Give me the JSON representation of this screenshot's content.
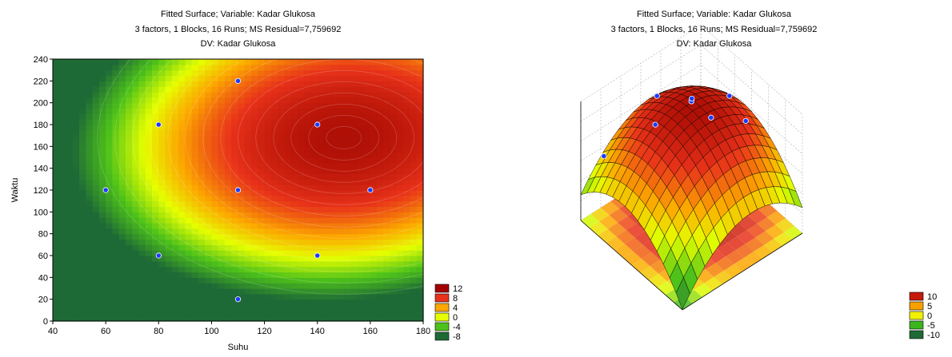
{
  "chart_data": [
    {
      "type": "contour",
      "title_lines": [
        "Fitted Surface; Variable: Kadar Glukosa",
        "3 factors, 1 Blocks, 16 Runs; MS Residual=7,759692",
        "DV: Kadar Glukosa"
      ],
      "xlabel": "Suhu",
      "ylabel": "Waktu",
      "xlim": [
        40,
        180
      ],
      "ylim": [
        0,
        240
      ],
      "x_ticks": [
        "40",
        "60",
        "80",
        "100",
        "120",
        "140",
        "160",
        "180"
      ],
      "y_ticks": [
        "0",
        "20",
        "40",
        "60",
        "80",
        "100",
        "120",
        "140",
        "160",
        "180",
        "200",
        "220",
        "240"
      ],
      "points": [
        {
          "x": 110,
          "y": 220
        },
        {
          "x": 80,
          "y": 180
        },
        {
          "x": 140,
          "y": 180
        },
        {
          "x": 60,
          "y": 120
        },
        {
          "x": 110,
          "y": 120
        },
        {
          "x": 160,
          "y": 120
        },
        {
          "x": 80,
          "y": 60
        },
        {
          "x": 140,
          "y": 60
        },
        {
          "x": 110,
          "y": 20
        }
      ],
      "legend": [
        {
          "label": "12",
          "color": "#a30000"
        },
        {
          "label": "8",
          "color": "#e8321a"
        },
        {
          "label": "4",
          "color": "#fca800"
        },
        {
          "label": "0",
          "color": "#e6ff00"
        },
        {
          "label": "-4",
          "color": "#4ec21a"
        },
        {
          "label": "-8",
          "color": "#1e6a36"
        }
      ]
    },
    {
      "type": "surface3d",
      "title_lines": [
        "Fitted Surface; Variable: Kadar Glukosa",
        "3 factors, 1 Blocks, 16 Runs; MS Residual=7,759692",
        "DV: Kadar Glukosa"
      ],
      "legend": [
        {
          "label": "10",
          "color": "#c41a0a"
        },
        {
          "label": "5",
          "color": "#f8a000"
        },
        {
          "label": "0",
          "color": "#f0f000"
        },
        {
          "label": "-5",
          "color": "#3cb41e"
        },
        {
          "label": "-10",
          "color": "#1e6a36"
        }
      ]
    }
  ]
}
